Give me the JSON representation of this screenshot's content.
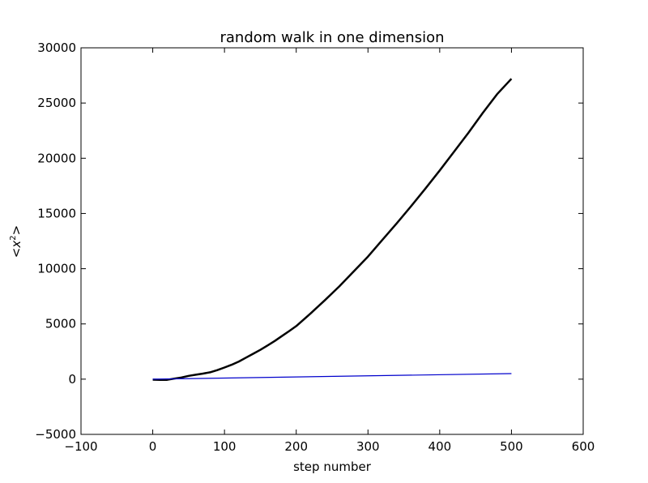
{
  "chart_data": {
    "type": "line",
    "title": "random walk in one dimension",
    "xlabel": "step number",
    "ylabel_prefix": "<",
    "ylabel_var": "x",
    "ylabel_sup": "2",
    "ylabel_suffix": ">",
    "xlim": [
      -100,
      600
    ],
    "ylim": [
      -5000,
      30000
    ],
    "xticks": [
      -100,
      0,
      100,
      200,
      300,
      400,
      500,
      600
    ],
    "yticks": [
      -5000,
      0,
      5000,
      10000,
      15000,
      20000,
      25000,
      30000
    ],
    "xtick_labels": [
      "−100",
      "0",
      "100",
      "200",
      "300",
      "400",
      "500",
      "600"
    ],
    "ytick_labels": [
      "−5000",
      "0",
      "5000",
      "10000",
      "15000",
      "20000",
      "25000",
      "30000"
    ],
    "grid": false,
    "series": [
      {
        "color": "#000000",
        "x": [
          0,
          10,
          20,
          30,
          40,
          50,
          60,
          70,
          80,
          90,
          100,
          110,
          120,
          130,
          140,
          150,
          160,
          170,
          180,
          190,
          200,
          220,
          240,
          260,
          280,
          300,
          320,
          340,
          360,
          380,
          400,
          420,
          440,
          460,
          480,
          500
        ],
        "y": [
          -50,
          -60,
          -60,
          50,
          150,
          300,
          400,
          500,
          620,
          820,
          1050,
          1300,
          1600,
          1950,
          2300,
          2650,
          3050,
          3450,
          3900,
          4350,
          4800,
          5950,
          7150,
          8400,
          9750,
          11100,
          12600,
          14100,
          15650,
          17250,
          18900,
          20600,
          22300,
          24100,
          25800,
          27200
        ]
      },
      {
        "color": "#0000cc",
        "x": [
          0,
          500
        ],
        "y": [
          0,
          500
        ]
      }
    ]
  }
}
